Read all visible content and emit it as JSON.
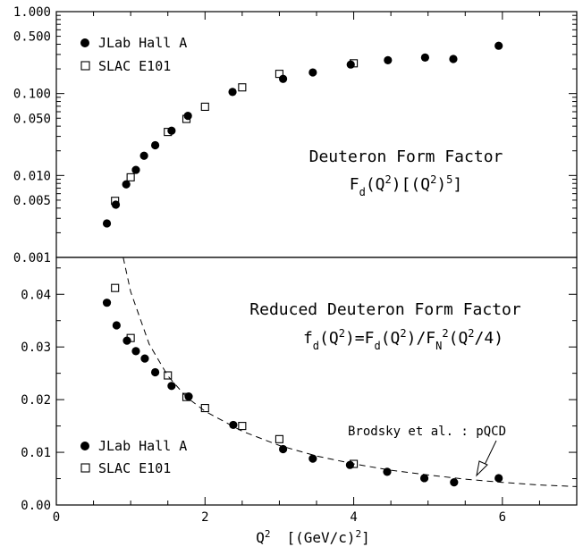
{
  "chart_data": [
    {
      "type": "scatter",
      "yscale": "log",
      "xlim": [
        0,
        7
      ],
      "ylim": [
        0.001,
        1.0
      ],
      "ytick_labels": [
        "1.000",
        "0.500",
        "0.100",
        "0.050",
        "0.010",
        "0.005",
        "0.001"
      ],
      "ytick_values": [
        1.0,
        0.5,
        0.1,
        0.05,
        0.01,
        0.005,
        0.001
      ],
      "title_line1": "Deuteron Form Factor",
      "title_line2": "F_d(Q^2)[(Q^2)^5]",
      "legend_position": "top-left",
      "series": [
        {
          "name": "JLab Hall A",
          "marker": "filled-circle",
          "x": [
            0.68,
            0.8,
            0.94,
            1.07,
            1.18,
            1.33,
            1.55,
            1.77,
            2.37,
            3.05,
            3.45,
            3.96,
            4.46,
            4.96,
            5.34,
            5.95
          ],
          "y": [
            0.0026,
            0.0044,
            0.0078,
            0.0117,
            0.0174,
            0.0234,
            0.0352,
            0.0534,
            0.1047,
            0.151,
            0.181,
            0.226,
            0.255,
            0.275,
            0.264,
            0.383
          ]
        },
        {
          "name": "SLAC E101",
          "marker": "open-square",
          "x": [
            0.79,
            1.0,
            1.5,
            1.75,
            2.0,
            2.5,
            3.0,
            4.0
          ],
          "y": [
            0.0049,
            0.0095,
            0.034,
            0.049,
            0.069,
            0.119,
            0.174,
            0.234
          ]
        }
      ]
    },
    {
      "type": "scatter",
      "xlim": [
        0,
        7
      ],
      "ylim": [
        0,
        0.047
      ],
      "ytick_labels": [
        "0.00",
        "0.01",
        "0.02",
        "0.03",
        "0.04"
      ],
      "ytick_values": [
        0,
        0.01,
        0.02,
        0.03,
        0.04
      ],
      "xtick_labels": [
        "0",
        "2",
        "4",
        "6"
      ],
      "xtick_values": [
        0,
        2,
        4,
        6
      ],
      "xlabel_base": "Q",
      "xlabel_exp": "2",
      "xlabel_unit": "[(GeV/c)",
      "xlabel_unit_exp": "2",
      "xlabel_close": "]",
      "title_line1": "Reduced Deuteron Form Factor",
      "title_line2": "f_d(Q^2)=F_d(Q^2)/F_N^2(Q^2/4)",
      "legend_position": "bottom-left",
      "annotation": "Brodsky et al. : pQCD",
      "series": [
        {
          "name": "JLab Hall A",
          "marker": "filled-circle",
          "x": [
            0.68,
            0.81,
            0.95,
            1.07,
            1.19,
            1.33,
            1.55,
            1.78,
            2.38,
            3.05,
            3.45,
            3.95,
            4.45,
            4.95,
            5.35,
            5.95
          ],
          "y": [
            0.0384,
            0.0341,
            0.0312,
            0.0292,
            0.0278,
            0.0252,
            0.0226,
            0.0206,
            0.0152,
            0.0106,
            0.0088,
            0.0076,
            0.0063,
            0.0051,
            0.0043,
            0.0051
          ]
        },
        {
          "name": "SLAC E101",
          "marker": "open-square",
          "x": [
            0.79,
            1.0,
            1.5,
            1.75,
            2.0,
            2.5,
            3.0,
            4.0
          ],
          "y": [
            0.0412,
            0.0317,
            0.0246,
            0.0205,
            0.0184,
            0.015,
            0.0125,
            0.0078
          ]
        },
        {
          "name": "Brodsky et al. : pQCD",
          "style": "dashed-line",
          "x": [
            0.9,
            1.0,
            1.25,
            1.5,
            1.75,
            2.0,
            2.5,
            3.0,
            3.5,
            4.0,
            4.5,
            5.0,
            5.5,
            6.0,
            6.5,
            7.0
          ],
          "y": [
            0.047,
            0.0405,
            0.0305,
            0.0245,
            0.0205,
            0.0178,
            0.014,
            0.0113,
            0.0093,
            0.0078,
            0.0066,
            0.0057,
            0.0049,
            0.0043,
            0.0038,
            0.0035
          ]
        }
      ]
    }
  ]
}
